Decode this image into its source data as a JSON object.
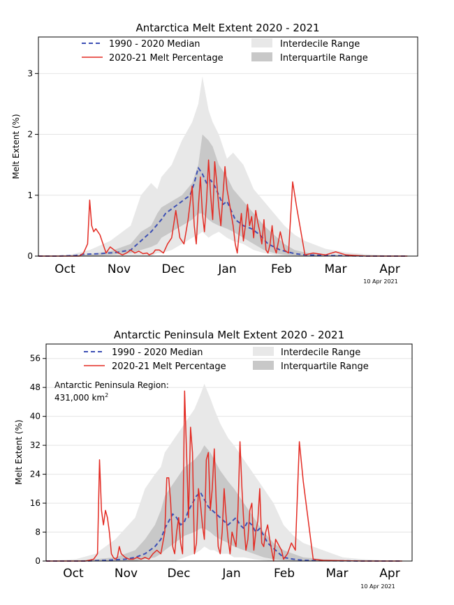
{
  "chart_data": [
    {
      "type": "line",
      "title": "Antarctica Melt Extent 2020 - 2021",
      "xlabel": "",
      "ylabel": "Melt Extent (%)",
      "ylim": [
        0,
        3.6
      ],
      "yticks": [
        "0",
        "1",
        "2",
        "3"
      ],
      "months": [
        "Oct",
        "Nov",
        "Dec",
        "Jan",
        "Feb",
        "Mar",
        "Apr"
      ],
      "date_note": "10 Apr 2021",
      "legend_loc": "top",
      "legend": {
        "median": "1990 - 2020 Median",
        "melt": "2020-21 Melt Percentage",
        "interdecile": "Interdecile Range",
        "interquartile": "Interquartile Range"
      },
      "annotation": [],
      "series": [
        {
          "name": "1990 - 2020 Median",
          "color": "#3c4fb4",
          "style": "dashed",
          "x": [
            0,
            10,
            18,
            22,
            30,
            38,
            45,
            50,
            55,
            60,
            62,
            64,
            66,
            68,
            70,
            72,
            74,
            76,
            78,
            80,
            82,
            84,
            86,
            88,
            90,
            92,
            94,
            96,
            98,
            100,
            104,
            108,
            112,
            118,
            125,
            130,
            140,
            160,
            180
          ],
          "y": [
            0,
            0,
            0.01,
            0.03,
            0.04,
            0.06,
            0.1,
            0.25,
            0.4,
            0.6,
            0.7,
            0.75,
            0.8,
            0.85,
            0.9,
            0.95,
            1.0,
            1.2,
            1.45,
            1.35,
            1.2,
            1.25,
            1.15,
            1.0,
            0.85,
            0.9,
            0.75,
            0.6,
            0.55,
            0.5,
            0.45,
            0.35,
            0.2,
            0.1,
            0.04,
            0.02,
            0.01,
            0,
            0
          ]
        },
        {
          "name": "2020-21 Melt Percentage",
          "color": "#e32b23",
          "style": "solid",
          "x": [
            0,
            20,
            22,
            24,
            25,
            26,
            27,
            28,
            30,
            32,
            33,
            35,
            37,
            39,
            41,
            43,
            45,
            47,
            49,
            51,
            53,
            54,
            56,
            57,
            59,
            61,
            63,
            65,
            67,
            69,
            71,
            73,
            75,
            76,
            77,
            78,
            79,
            80,
            81,
            82,
            83,
            84,
            85,
            86,
            87,
            88,
            89,
            90,
            91,
            92,
            93,
            95,
            96,
            97,
            98,
            99,
            100,
            101,
            102,
            103,
            104,
            105,
            106,
            107,
            108,
            109,
            110,
            111,
            112,
            113,
            114,
            115,
            116,
            118,
            120,
            122,
            124,
            126,
            130,
            134,
            140,
            145,
            150,
            160,
            180
          ],
          "y": [
            0,
            0,
            0.05,
            0.2,
            0.92,
            0.5,
            0.4,
            0.45,
            0.35,
            0.15,
            0.05,
            0.15,
            0.1,
            0.05,
            0.02,
            0.05,
            0.1,
            0.05,
            0.08,
            0.04,
            0.05,
            0.02,
            0.05,
            0.1,
            0.1,
            0.05,
            0.2,
            0.3,
            0.75,
            0.3,
            0.2,
            0.6,
            1.15,
            0.5,
            0.2,
            0.8,
            1.3,
            0.7,
            0.4,
            0.9,
            1.58,
            1.0,
            0.6,
            1.55,
            1.2,
            0.8,
            0.5,
            1.0,
            1.47,
            1.1,
            0.9,
            0.5,
            0.2,
            0.05,
            0.4,
            0.7,
            0.25,
            0.5,
            0.85,
            0.5,
            0.65,
            0.3,
            0.75,
            0.55,
            0.4,
            0.2,
            0.6,
            0.1,
            0.05,
            0.2,
            0.5,
            0.15,
            0.05,
            0.4,
            0.1,
            0.05,
            1.22,
            0.8,
            0.02,
            0.05,
            0.02,
            0.07,
            0.02,
            0,
            0
          ]
        }
      ],
      "bands": {
        "x": [
          0,
          15,
          25,
          35,
          45,
          50,
          55,
          58,
          60,
          65,
          70,
          75,
          78,
          80,
          83,
          85,
          88,
          92,
          95,
          100,
          105,
          110,
          115,
          120,
          125,
          130,
          140,
          150,
          160,
          170,
          180
        ],
        "interdecile_lo": [
          0,
          0,
          0,
          0,
          0,
          0,
          0,
          0.05,
          0.05,
          0.1,
          0.2,
          0.3,
          0.35,
          0.4,
          0.3,
          0.35,
          0.4,
          0.3,
          0.25,
          0.2,
          0.1,
          0.05,
          0.02,
          0,
          0,
          0,
          0,
          0,
          0,
          0,
          0
        ],
        "interdecile_hi": [
          0,
          0.02,
          0.1,
          0.25,
          0.5,
          1.0,
          1.2,
          1.1,
          1.3,
          1.5,
          1.9,
          2.2,
          2.5,
          2.95,
          2.4,
          2.2,
          2.0,
          1.6,
          1.7,
          1.5,
          1.1,
          0.9,
          0.7,
          0.5,
          0.35,
          0.25,
          0.12,
          0.06,
          0.03,
          0.01,
          0
        ],
        "interquartile_lo": [
          0,
          0,
          0,
          0.02,
          0.05,
          0.1,
          0.15,
          0.2,
          0.3,
          0.4,
          0.5,
          0.6,
          0.7,
          0.7,
          0.6,
          0.55,
          0.5,
          0.45,
          0.4,
          0.3,
          0.2,
          0.1,
          0.05,
          0.02,
          0.01,
          0,
          0,
          0,
          0,
          0,
          0
        ],
        "interquartile_hi": [
          0,
          0.01,
          0.03,
          0.08,
          0.2,
          0.4,
          0.5,
          0.7,
          0.8,
          0.9,
          1.0,
          1.2,
          1.5,
          2.0,
          1.9,
          1.8,
          1.5,
          1.3,
          1.1,
          0.9,
          0.7,
          0.5,
          0.35,
          0.2,
          0.1,
          0.06,
          0.02,
          0.01,
          0,
          0,
          0
        ]
      }
    },
    {
      "type": "line",
      "title": "Antarctic Peninsula Melt Extent 2020 - 2021",
      "xlabel": "",
      "ylabel": "Melt Extent (%)",
      "ylim": [
        0,
        60
      ],
      "yticks": [
        "0",
        "8",
        "16",
        "24",
        "32",
        "40",
        "48",
        "56"
      ],
      "months": [
        "Oct",
        "Nov",
        "Dec",
        "Jan",
        "Feb",
        "Mar",
        "Apr"
      ],
      "date_note": "10 Apr 2021",
      "legend_loc": "top",
      "legend": {
        "median": "1990 - 2020 Median",
        "melt": "2020-21 Melt Percentage",
        "interdecile": "Interdecile Range",
        "interquartile": "Interquartile Range"
      },
      "annotation": [
        "Antarctic Peninsula Region:",
        "431,000 km",
        "2"
      ],
      "series": [
        {
          "name": "1990 - 2020 Median",
          "color": "#3c4fb4",
          "style": "dashed",
          "x": [
            0,
            20,
            30,
            40,
            45,
            50,
            55,
            58,
            60,
            62,
            64,
            66,
            68,
            70,
            72,
            74,
            76,
            78,
            80,
            82,
            84,
            86,
            88,
            90,
            92,
            94,
            96,
            98,
            100,
            102,
            104,
            106,
            108,
            110,
            112,
            114,
            116,
            118,
            120,
            125,
            130,
            140,
            160,
            180
          ],
          "y": [
            0,
            0,
            0.2,
            0.5,
            1,
            2,
            4,
            6,
            9,
            11,
            13,
            12,
            10,
            11,
            14,
            16,
            18,
            19,
            17,
            15,
            14,
            13,
            12,
            11,
            10,
            11,
            12,
            10,
            9,
            11,
            10,
            8,
            9,
            7,
            5,
            4,
            3,
            2,
            1,
            0.5,
            0.2,
            0.1,
            0,
            0
          ]
        },
        {
          "name": "2020-21 Melt Percentage",
          "color": "#e32b23",
          "style": "solid",
          "x": [
            0,
            20,
            24,
            26,
            27,
            28,
            29,
            30,
            31,
            32,
            33,
            34,
            35,
            36,
            37,
            38,
            40,
            42,
            44,
            46,
            48,
            50,
            52,
            54,
            56,
            58,
            60,
            61,
            62,
            63,
            64,
            65,
            66,
            67,
            68,
            69,
            70,
            71,
            72,
            73,
            74,
            75,
            76,
            77,
            78,
            79,
            80,
            81,
            82,
            83,
            84,
            85,
            86,
            87,
            88,
            89,
            90,
            91,
            92,
            93,
            94,
            95,
            96,
            97,
            98,
            99,
            100,
            101,
            102,
            103,
            104,
            105,
            106,
            107,
            108,
            109,
            110,
            111,
            112,
            113,
            114,
            115,
            116,
            117,
            118,
            119,
            120,
            122,
            124,
            126,
            128,
            130,
            135,
            140,
            150,
            160,
            180
          ],
          "y": [
            0,
            0,
            0.5,
            2,
            28,
            14,
            10,
            14,
            12,
            8,
            2,
            1,
            0.5,
            1,
            4,
            2,
            1,
            0.5,
            0.5,
            1,
            0.5,
            1,
            0.5,
            2,
            3,
            2,
            8,
            23,
            23,
            16,
            4,
            2,
            8,
            12,
            5,
            2,
            47,
            30,
            12,
            37,
            30,
            2,
            5,
            20,
            16,
            10,
            6,
            28,
            30,
            14,
            20,
            31,
            16,
            4,
            2,
            8,
            20,
            12,
            6,
            2,
            8,
            6,
            4,
            14,
            33,
            20,
            10,
            3,
            6,
            14,
            16,
            3,
            8,
            11,
            20,
            5,
            4,
            8,
            10,
            6,
            3,
            0,
            6,
            5,
            4,
            3,
            0.5,
            2,
            5,
            3,
            33,
            22,
            0.5,
            0.2,
            0.1,
            0,
            0
          ]
        }
      ],
      "bands": {
        "x": [
          0,
          15,
          25,
          35,
          45,
          50,
          55,
          58,
          60,
          65,
          70,
          75,
          78,
          80,
          83,
          85,
          88,
          92,
          95,
          100,
          105,
          110,
          115,
          120,
          125,
          130,
          140,
          150,
          160,
          170,
          180
        ],
        "interdecile_lo": [
          0,
          0,
          0,
          0,
          0,
          0,
          0,
          0,
          0,
          0,
          1,
          2,
          3,
          4,
          3,
          3,
          2,
          2,
          1,
          1,
          0.5,
          0.2,
          0,
          0,
          0,
          0,
          0,
          0,
          0,
          0,
          0
        ],
        "interdecile_hi": [
          0,
          0.5,
          2,
          6,
          12,
          20,
          24,
          26,
          30,
          34,
          38,
          42,
          46,
          49,
          45,
          42,
          38,
          34,
          32,
          28,
          24,
          20,
          16,
          10,
          7,
          5,
          3,
          1,
          0.5,
          0.2,
          0
        ],
        "interquartile_lo": [
          0,
          0,
          0,
          0,
          0,
          0.5,
          1,
          2,
          3,
          5,
          7,
          8,
          9,
          9,
          8,
          7,
          6,
          5,
          4,
          3,
          2,
          1,
          0.5,
          0.2,
          0.1,
          0,
          0,
          0,
          0,
          0,
          0
        ],
        "interquartile_hi": [
          0,
          0.1,
          0.5,
          1,
          3,
          6,
          10,
          14,
          18,
          22,
          26,
          28,
          30,
          32,
          30,
          28,
          25,
          22,
          20,
          16,
          12,
          8,
          5,
          3,
          2,
          1,
          0.5,
          0.2,
          0,
          0,
          0
        ]
      }
    }
  ]
}
